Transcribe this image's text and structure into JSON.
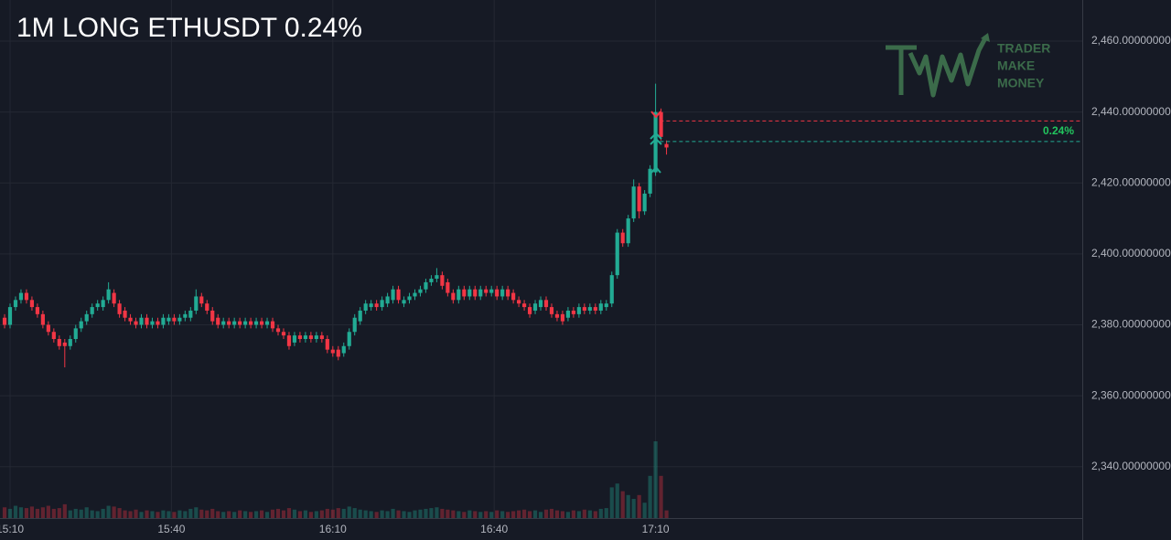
{
  "chart_data": {
    "type": "candlestick",
    "title": "1M LONG ETHUSDT 0.24%",
    "logo": [
      "TRADER",
      "MAKE",
      "MONEY"
    ],
    "up_color": "#22ab94",
    "down_color": "#f23645",
    "grid": true,
    "ylim": [
      2325.5,
      2471.6
    ],
    "yticks": [
      {
        "value": 2340,
        "label": "2,340.00000000"
      },
      {
        "value": 2360,
        "label": "2,360.00000000"
      },
      {
        "value": 2380,
        "label": "2,380.00000000"
      },
      {
        "value": 2400,
        "label": "2,400.00000000"
      },
      {
        "value": 2420,
        "label": "2,420.00000000"
      },
      {
        "value": 2440,
        "label": "2,440.00000000"
      },
      {
        "value": 2460,
        "label": "2,460.00000000"
      }
    ],
    "xlim": [
      -0.84,
      197
    ],
    "xticks": [
      {
        "value": 1,
        "label": "15:10"
      },
      {
        "value": 30.5,
        "label": "15:40"
      },
      {
        "value": 60,
        "label": "16:10"
      },
      {
        "value": 89.5,
        "label": "16:40"
      },
      {
        "value": 119,
        "label": "17:10"
      }
    ],
    "trade": {
      "exit_price": 2437.5,
      "entry_price": 2431.7,
      "result_label": "0.24%",
      "start_index": 119.8
    },
    "volume_lim": [
      0,
      100
    ],
    "ohlc": [
      [
        2382,
        2383,
        2379,
        2380
      ],
      [
        2380,
        2386,
        2379,
        2385
      ],
      [
        2385,
        2388,
        2384,
        2387
      ],
      [
        2387,
        2390,
        2386,
        2389
      ],
      [
        2389,
        2390,
        2386,
        2387
      ],
      [
        2387,
        2388,
        2384,
        2385
      ],
      [
        2385,
        2386,
        2382,
        2383
      ],
      [
        2383,
        2384,
        2379,
        2380
      ],
      [
        2380,
        2381,
        2377,
        2378
      ],
      [
        2378,
        2379,
        2375,
        2376
      ],
      [
        2376,
        2377,
        2373,
        2374
      ],
      [
        2375,
        2376,
        2368,
        2374
      ],
      [
        2374,
        2377,
        2373,
        2376
      ],
      [
        2376,
        2380,
        2375,
        2379
      ],
      [
        2379,
        2382,
        2378,
        2381
      ],
      [
        2381,
        2384,
        2380,
        2383
      ],
      [
        2383,
        2386,
        2382,
        2385
      ],
      [
        2385,
        2387,
        2384,
        2386
      ],
      [
        2385,
        2388,
        2384,
        2387
      ],
      [
        2387,
        2392,
        2386,
        2390
      ],
      [
        2389,
        2390,
        2385,
        2386
      ],
      [
        2386,
        2387,
        2382,
        2383
      ],
      [
        2384,
        2385,
        2381,
        2382
      ],
      [
        2382,
        2383,
        2380,
        2381
      ],
      [
        2381,
        2382,
        2379,
        2380
      ],
      [
        2380,
        2383,
        2379,
        2382
      ],
      [
        2382,
        2383,
        2379,
        2380
      ],
      [
        2380,
        2382,
        2379,
        2381
      ],
      [
        2381,
        2382,
        2379,
        2380
      ],
      [
        2380,
        2383,
        2379,
        2382
      ],
      [
        2381,
        2383,
        2380,
        2382
      ],
      [
        2382,
        2383,
        2380,
        2381
      ],
      [
        2381,
        2383,
        2380,
        2382
      ],
      [
        2382,
        2384,
        2381,
        2383
      ],
      [
        2382,
        2385,
        2381,
        2384
      ],
      [
        2384,
        2390,
        2383,
        2388
      ],
      [
        2388,
        2389,
        2385,
        2386
      ],
      [
        2386,
        2387,
        2383,
        2384
      ],
      [
        2384,
        2385,
        2380,
        2381
      ],
      [
        2382,
        2383,
        2379,
        2380
      ],
      [
        2380,
        2382,
        2379,
        2381
      ],
      [
        2381,
        2382,
        2379,
        2380
      ],
      [
        2380,
        2382,
        2379,
        2381
      ],
      [
        2381,
        2382,
        2379,
        2380
      ],
      [
        2380,
        2382,
        2379,
        2381
      ],
      [
        2381,
        2382,
        2379,
        2380
      ],
      [
        2380,
        2382,
        2379,
        2381
      ],
      [
        2381,
        2382,
        2379,
        2380
      ],
      [
        2380,
        2382,
        2379,
        2381
      ],
      [
        2381,
        2382,
        2378,
        2379
      ],
      [
        2379,
        2380,
        2377,
        2378
      ],
      [
        2378,
        2379,
        2376,
        2377
      ],
      [
        2377,
        2378,
        2373,
        2374
      ],
      [
        2375,
        2378,
        2374,
        2377
      ],
      [
        2377,
        2378,
        2375,
        2376
      ],
      [
        2376,
        2378,
        2375,
        2377
      ],
      [
        2377,
        2378,
        2375,
        2376
      ],
      [
        2376,
        2378,
        2375,
        2377
      ],
      [
        2377,
        2378,
        2375,
        2376
      ],
      [
        2376,
        2377,
        2372,
        2373
      ],
      [
        2373,
        2374,
        2371,
        2372
      ],
      [
        2373,
        2374,
        2370,
        2371
      ],
      [
        2372,
        2375,
        2371,
        2374
      ],
      [
        2374,
        2379,
        2373,
        2378
      ],
      [
        2378,
        2383,
        2377,
        2382
      ],
      [
        2381,
        2385,
        2380,
        2384
      ],
      [
        2384,
        2387,
        2383,
        2386
      ],
      [
        2385,
        2387,
        2384,
        2386
      ],
      [
        2386,
        2387,
        2384,
        2385
      ],
      [
        2385,
        2388,
        2384,
        2387
      ],
      [
        2386,
        2389,
        2385,
        2388
      ],
      [
        2387,
        2391,
        2386,
        2390
      ],
      [
        2390,
        2391,
        2386,
        2387
      ],
      [
        2386,
        2388,
        2385,
        2387
      ],
      [
        2387,
        2389,
        2386,
        2388
      ],
      [
        2388,
        2390,
        2387,
        2389
      ],
      [
        2389,
        2391,
        2388,
        2390
      ],
      [
        2390,
        2393,
        2389,
        2392
      ],
      [
        2392,
        2394,
        2391,
        2393
      ],
      [
        2393,
        2396,
        2392,
        2394
      ],
      [
        2394,
        2395,
        2390,
        2391
      ],
      [
        2392,
        2393,
        2388,
        2389
      ],
      [
        2389,
        2390,
        2386,
        2387
      ],
      [
        2387,
        2391,
        2386,
        2390
      ],
      [
        2390,
        2391,
        2387,
        2388
      ],
      [
        2388,
        2391,
        2387,
        2390
      ],
      [
        2390,
        2391,
        2387,
        2388
      ],
      [
        2388,
        2391,
        2387,
        2390
      ],
      [
        2390,
        2391,
        2388,
        2389
      ],
      [
        2389,
        2391,
        2388,
        2390
      ],
      [
        2390,
        2391,
        2387,
        2388
      ],
      [
        2388,
        2391,
        2387,
        2390
      ],
      [
        2390,
        2391,
        2387,
        2388
      ],
      [
        2389,
        2390,
        2386,
        2387
      ],
      [
        2387,
        2388,
        2385,
        2386
      ],
      [
        2386,
        2387,
        2384,
        2385
      ],
      [
        2385,
        2386,
        2382,
        2383
      ],
      [
        2384,
        2387,
        2383,
        2386
      ],
      [
        2385,
        2388,
        2384,
        2387
      ],
      [
        2387,
        2388,
        2384,
        2385
      ],
      [
        2385,
        2386,
        2382,
        2383
      ],
      [
        2383,
        2384,
        2381,
        2382
      ],
      [
        2383,
        2384,
        2380,
        2381
      ],
      [
        2382,
        2385,
        2381,
        2384
      ],
      [
        2384,
        2385,
        2382,
        2383
      ],
      [
        2383,
        2386,
        2382,
        2385
      ],
      [
        2385,
        2386,
        2383,
        2384
      ],
      [
        2384,
        2386,
        2383,
        2385
      ],
      [
        2385,
        2386,
        2383,
        2384
      ],
      [
        2384,
        2387,
        2383,
        2386
      ],
      [
        2385,
        2387,
        2384,
        2386
      ],
      [
        2386,
        2395,
        2385,
        2394
      ],
      [
        2394,
        2407,
        2393,
        2406
      ],
      [
        2406,
        2407,
        2402,
        2403
      ],
      [
        2403,
        2411,
        2402,
        2410
      ],
      [
        2410,
        2421,
        2409,
        2419
      ],
      [
        2419,
        2420,
        2410,
        2412
      ],
      [
        2412,
        2418,
        2411,
        2417
      ],
      [
        2417,
        2425,
        2416,
        2424
      ],
      [
        2423,
        2448,
        2422,
        2440
      ],
      [
        2440,
        2441,
        2432,
        2433
      ],
      [
        2431,
        2432,
        2428,
        2430
      ]
    ],
    "volume": [
      14,
      12,
      16,
      14,
      13,
      15,
      12,
      14,
      16,
      12,
      13,
      18,
      10,
      12,
      11,
      14,
      10,
      9,
      12,
      16,
      15,
      13,
      10,
      9,
      11,
      8,
      10,
      9,
      8,
      10,
      9,
      8,
      10,
      9,
      12,
      14,
      11,
      10,
      12,
      9,
      8,
      9,
      8,
      10,
      9,
      8,
      9,
      10,
      8,
      11,
      12,
      10,
      13,
      11,
      9,
      10,
      8,
      9,
      10,
      12,
      11,
      13,
      12,
      15,
      13,
      11,
      10,
      9,
      8,
      10,
      9,
      12,
      10,
      9,
      8,
      10,
      11,
      12,
      13,
      14,
      12,
      11,
      10,
      9,
      8,
      10,
      9,
      8,
      9,
      8,
      10,
      9,
      8,
      9,
      10,
      11,
      9,
      10,
      8,
      11,
      12,
      10,
      9,
      8,
      10,
      9,
      11,
      10,
      9,
      12,
      13,
      40,
      45,
      35,
      30,
      25,
      30,
      20,
      55,
      100,
      55,
      10
    ]
  }
}
